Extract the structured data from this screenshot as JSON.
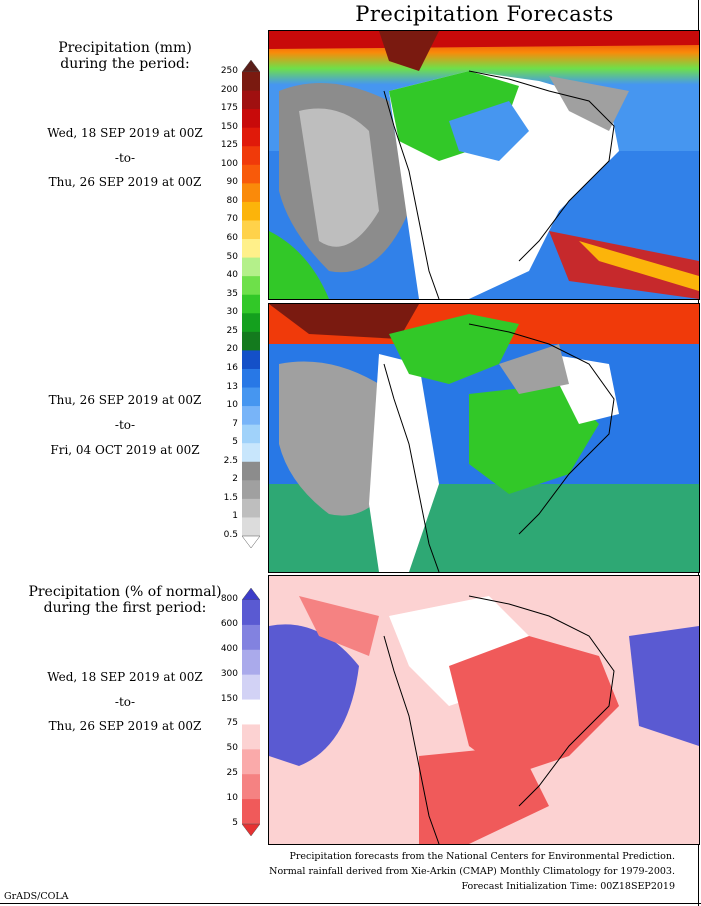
{
  "title": "Precipitation Forecasts",
  "period_block": {
    "heading": "Precipitation (mm)\nduring the period:",
    "period1": {
      "start": "Wed, 18 SEP 2019 at 00Z",
      "sep": "-to-",
      "end": "Thu, 26 SEP 2019 at 00Z"
    },
    "period2": {
      "start": "Thu, 26 SEP 2019 at 00Z",
      "sep": "-to-",
      "end": "Fri, 04 OCT 2019 at 00Z"
    }
  },
  "percent_block": {
    "heading": "Precipitation (% of normal)\nduring the first period:",
    "period": {
      "start": "Wed, 18 SEP 2019 at 00Z",
      "sep": "-to-",
      "end": "Thu, 26 SEP 2019 at 00Z"
    }
  },
  "precip_scale": {
    "ticks": [
      "250",
      "200",
      "175",
      "150",
      "125",
      "100",
      "90",
      "80",
      "70",
      "60",
      "50",
      "40",
      "35",
      "30",
      "25",
      "20",
      "16",
      "13",
      "10",
      "7",
      "5",
      "2.5",
      "2",
      "1.5",
      "1",
      "0.5"
    ],
    "colors": [
      "#5a1f1a",
      "#7a1a10",
      "#a01010",
      "#c80a0a",
      "#e01a0a",
      "#f03a0a",
      "#f85a0a",
      "#fa8a0a",
      "#fcb40a",
      "#ffd24a",
      "#fff08a",
      "#b4f08a",
      "#6ee04a",
      "#32c828",
      "#14a01e",
      "#147a1e",
      "#1450c8",
      "#2878e6",
      "#4696f0",
      "#78b4f8",
      "#a0d2fa",
      "#c8e6fc",
      "#8c8c8c",
      "#a0a0a0",
      "#bebebe",
      "#dcdcdc",
      "#ffffff"
    ]
  },
  "percent_scale": {
    "ticks": [
      "800",
      "600",
      "400",
      "300",
      "150",
      "75",
      "50",
      "25",
      "10",
      "5"
    ],
    "colors": [
      "#3c3cc8",
      "#5a5ad2",
      "#8282e0",
      "#aaaaeb",
      "#d2d2f5",
      "#ffffff",
      "#fcd2d2",
      "#faaaaa",
      "#f58282",
      "#f05a5a",
      "#e63232"
    ]
  },
  "footer": {
    "line1": "Precipitation forecasts from the National Centers for Environmental Prediction.",
    "line2": "Normal rainfall derived from Xie-Arkin (CMAP) Monthly Climatology for 1979-2003.",
    "line3": "Forecast Initialization Time: 00Z18SEP2019"
  },
  "credit": "GrADS/COLA"
}
